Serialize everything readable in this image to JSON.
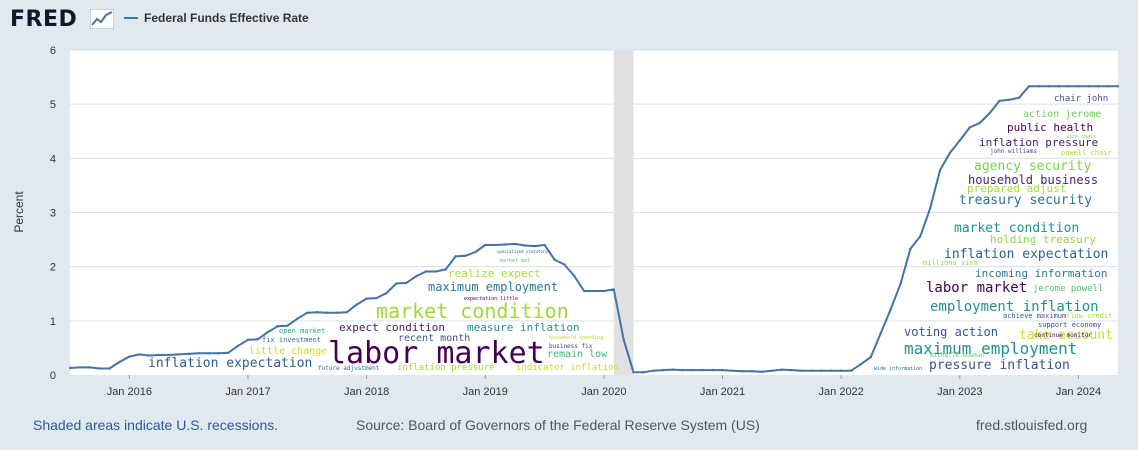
{
  "header": {
    "logo": "FRED",
    "legend_label": "Federal Funds Effective Rate"
  },
  "colors": {
    "series": "#4572a7",
    "plot_bg": "#ffffff",
    "page_bg": "#e1e9f0",
    "gridline": "#d9e1e7",
    "recession": "#e1e1e1"
  },
  "footer": {
    "recession_note": "Shaded areas indicate U.S. recessions.",
    "source": "Source: Board of Governors of the Federal Reserve System (US)",
    "site": "fred.stlouisfed.org"
  },
  "chart_data": {
    "type": "line",
    "ylabel": "Percent",
    "ylim": [
      0,
      6
    ],
    "yticks": [
      0,
      1,
      2,
      3,
      4,
      5,
      6
    ],
    "xlim": [
      "2015-07",
      "2024-05"
    ],
    "xticks": [
      "Jan 2016",
      "Jan 2017",
      "Jan 2018",
      "Jan 2019",
      "Jan 2020",
      "Jan 2021",
      "Jan 2022",
      "Jan 2023",
      "Jan 2024"
    ],
    "grid": true,
    "legend": "top-left",
    "recessions": [
      {
        "start": "2020-02",
        "end": "2020-04"
      }
    ],
    "series": [
      {
        "name": "Federal Funds Effective Rate",
        "x": [
          "2015-07",
          "2015-08",
          "2015-09",
          "2015-10",
          "2015-11",
          "2015-12",
          "2016-01",
          "2016-02",
          "2016-03",
          "2016-04",
          "2016-05",
          "2016-06",
          "2016-07",
          "2016-08",
          "2016-09",
          "2016-10",
          "2016-11",
          "2016-12",
          "2017-01",
          "2017-02",
          "2017-03",
          "2017-04",
          "2017-05",
          "2017-06",
          "2017-07",
          "2017-08",
          "2017-09",
          "2017-10",
          "2017-11",
          "2017-12",
          "2018-01",
          "2018-02",
          "2018-03",
          "2018-04",
          "2018-05",
          "2018-06",
          "2018-07",
          "2018-08",
          "2018-09",
          "2018-10",
          "2018-11",
          "2018-12",
          "2019-01",
          "2019-02",
          "2019-03",
          "2019-04",
          "2019-05",
          "2019-06",
          "2019-07",
          "2019-08",
          "2019-09",
          "2019-10",
          "2019-11",
          "2019-12",
          "2020-01",
          "2020-02",
          "2020-03",
          "2020-04",
          "2020-05",
          "2020-06",
          "2020-07",
          "2020-08",
          "2020-09",
          "2020-10",
          "2020-11",
          "2020-12",
          "2021-01",
          "2021-02",
          "2021-03",
          "2021-04",
          "2021-05",
          "2021-06",
          "2021-07",
          "2021-08",
          "2021-09",
          "2021-10",
          "2021-11",
          "2021-12",
          "2022-01",
          "2022-02",
          "2022-03",
          "2022-04",
          "2022-05",
          "2022-06",
          "2022-07",
          "2022-08",
          "2022-09",
          "2022-10",
          "2022-11",
          "2022-12",
          "2023-01",
          "2023-02",
          "2023-03",
          "2023-04",
          "2023-05",
          "2023-06",
          "2023-07",
          "2023-08",
          "2023-09",
          "2023-10",
          "2023-11",
          "2023-12",
          "2024-01",
          "2024-02",
          "2024-03",
          "2024-04",
          "2024-05"
        ],
        "y": [
          0.13,
          0.14,
          0.14,
          0.12,
          0.12,
          0.24,
          0.34,
          0.38,
          0.36,
          0.37,
          0.37,
          0.38,
          0.39,
          0.4,
          0.4,
          0.4,
          0.41,
          0.54,
          0.65,
          0.66,
          0.79,
          0.9,
          0.91,
          1.04,
          1.15,
          1.16,
          1.15,
          1.15,
          1.16,
          1.3,
          1.41,
          1.42,
          1.51,
          1.69,
          1.7,
          1.82,
          1.91,
          1.91,
          1.95,
          2.19,
          2.2,
          2.27,
          2.4,
          2.4,
          2.41,
          2.42,
          2.39,
          2.38,
          2.4,
          2.13,
          2.04,
          1.83,
          1.55,
          1.55,
          1.55,
          1.58,
          0.65,
          0.05,
          0.05,
          0.08,
          0.09,
          0.1,
          0.09,
          0.09,
          0.09,
          0.09,
          0.09,
          0.08,
          0.07,
          0.07,
          0.06,
          0.08,
          0.1,
          0.09,
          0.08,
          0.08,
          0.08,
          0.08,
          0.08,
          0.08,
          0.2,
          0.33,
          0.77,
          1.21,
          1.68,
          2.33,
          2.56,
          3.08,
          3.78,
          4.1,
          4.33,
          4.57,
          4.65,
          4.83,
          5.06,
          5.08,
          5.12,
          5.33,
          5.33,
          5.33,
          5.33,
          5.33,
          5.33,
          5.33,
          5.33,
          5.33,
          5.33
        ]
      }
    ],
    "word_clouds": [
      {
        "region": "2016-2020",
        "words": [
          {
            "text": "labor market",
            "size": 30,
            "color": "#440154"
          },
          {
            "text": "market condition",
            "size": 20,
            "color": "#a0d73a"
          },
          {
            "text": "maximum employment",
            "size": 12,
            "color": "#2a7a8e"
          },
          {
            "text": "inflation expectation",
            "size": 13,
            "color": "#2c5e8c"
          },
          {
            "text": "realize expect",
            "size": 11,
            "color": "#a8db34"
          },
          {
            "text": "expect condition",
            "size": 11,
            "color": "#3e1e66"
          },
          {
            "text": "measure inflation",
            "size": 11,
            "color": "#2a8a8a"
          },
          {
            "text": "recent month",
            "size": 10,
            "color": "#3b528b"
          },
          {
            "text": "remain low",
            "size": 10,
            "color": "#35b779"
          },
          {
            "text": "little change",
            "size": 10,
            "color": "#c2df23"
          },
          {
            "text": "inflation pressure",
            "size": 9,
            "color": "#a0da39"
          },
          {
            "text": "indicator inflation",
            "size": 9,
            "color": "#c2df23"
          },
          {
            "text": "open market",
            "size": 7,
            "color": "#26a784"
          },
          {
            "text": "fix investment",
            "size": 7,
            "color": "#2c718e"
          },
          {
            "text": "expectation little",
            "size": 5,
            "color": "#440154"
          },
          {
            "text": "specialized statutory",
            "size": 4,
            "color": "#3b528b"
          },
          {
            "text": "market met",
            "size": 5,
            "color": "#5ec962"
          },
          {
            "text": "household spending",
            "size": 5,
            "color": "#b5de2b"
          },
          {
            "text": "business fix",
            "size": 6,
            "color": "#3e4989"
          },
          {
            "text": "future adjustment",
            "size": 6,
            "color": "#2c718e"
          }
        ]
      },
      {
        "region": "2022-2024",
        "words": [
          {
            "text": "chair john",
            "size": 9,
            "color": "#3b528b"
          },
          {
            "text": "action jerome",
            "size": 10,
            "color": "#6cce59"
          },
          {
            "text": "public health",
            "size": 11,
            "color": "#440154"
          },
          {
            "text": "vice chair",
            "size": 5,
            "color": "#7ad151"
          },
          {
            "text": "inflation pressure",
            "size": 11,
            "color": "#3e1e66"
          },
          {
            "text": "john williams",
            "size": 6,
            "color": "#3e4989"
          },
          {
            "text": "powell chair",
            "size": 7,
            "color": "#b5de2b"
          },
          {
            "text": "agency security",
            "size": 13,
            "color": "#7ad151"
          },
          {
            "text": "household business",
            "size": 12,
            "color": "#481f70"
          },
          {
            "text": "prepared adjust",
            "size": 11,
            "color": "#9fda3a"
          },
          {
            "text": "treasury security",
            "size": 13,
            "color": "#2c718e"
          },
          {
            "text": "market condition",
            "size": 13,
            "color": "#218f8d"
          },
          {
            "text": "holding treasury",
            "size": 11,
            "color": "#8fd744"
          },
          {
            "text": "inflation expectation",
            "size": 13,
            "color": "#2c5e8c"
          },
          {
            "text": "millions visa",
            "size": 7,
            "color": "#90d743"
          },
          {
            "text": "incoming information",
            "size": 11,
            "color": "#2a788e"
          },
          {
            "text": "labor market",
            "size": 14,
            "color": "#440154"
          },
          {
            "text": "employment inflation",
            "size": 14,
            "color": "#21918c"
          },
          {
            "text": "jerome powell",
            "size": 9,
            "color": "#4ac16d"
          },
          {
            "text": "achieve maximum",
            "size": 7,
            "color": "#3b528b"
          },
          {
            "text": "flow credit",
            "size": 7,
            "color": "#9fda3a"
          },
          {
            "text": "take account",
            "size": 13,
            "color": "#c8e020"
          },
          {
            "text": "voting action",
            "size": 12,
            "color": "#3b528b"
          },
          {
            "text": "maximum employment",
            "size": 16,
            "color": "#21918c"
          },
          {
            "text": "pressure inflation",
            "size": 13,
            "color": "#3b528b"
          },
          {
            "text": "support economy",
            "size": 7,
            "color": "#3b528b"
          },
          {
            "text": "continue monitor",
            "size": 6,
            "color": "#440154"
          },
          {
            "text": "michelle bowman",
            "size": 6,
            "color": "#5ec962"
          },
          {
            "text": "wide information",
            "size": 5,
            "color": "#2c718e"
          }
        ]
      }
    ]
  }
}
